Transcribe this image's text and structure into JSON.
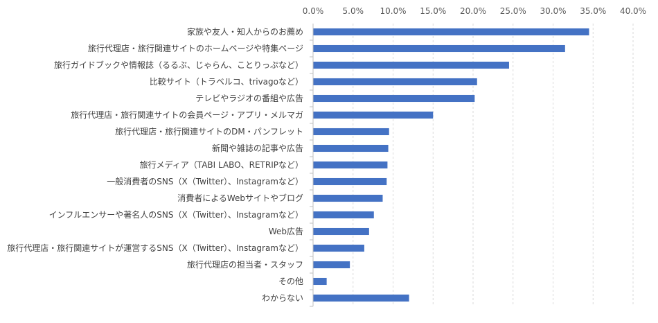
{
  "chart_data": {
    "type": "bar",
    "orientation": "horizontal",
    "x_axis_position": "top",
    "xlim": [
      0,
      40
    ],
    "x_ticks": [
      "0.0%",
      "5.0%",
      "10.0%",
      "15.0%",
      "20.0%",
      "25.0%",
      "30.0%",
      "35.0%",
      "40.0%"
    ],
    "x_tick_values": [
      0,
      5,
      10,
      15,
      20,
      25,
      30,
      35,
      40
    ],
    "categories": [
      "家族や友人・知人からのお薦め",
      "旅行代理店・旅行関連サイトのホームページや特集ページ",
      "旅行ガイドブックや情報誌（るるぶ、じゃらん、ことりっぷなど）",
      "比較サイト（トラベルコ、trivagoなど）",
      "テレビやラジオの番組や広告",
      "旅行代理店・旅行関連サイトの会員ページ・アプリ・メルマガ",
      "旅行代理店・旅行関連サイトのDM・パンフレット",
      "新聞や雑誌の記事や広告",
      "旅行メディア（TABI LABO、RETRIPなど）",
      "一般消費者のSNS（X（Twitter）、Instagramなど）",
      "消費者によるWebサイトやブログ",
      "インフルエンサーや著名人のSNS（X（Twitter）、Instagramなど）",
      "Web広告",
      "旅行代理店・旅行関連サイトが運営するSNS（X（Twitter）、Instagramなど）",
      "旅行代理店の担当者・スタッフ",
      "その他",
      "わからない"
    ],
    "values": [
      34.5,
      31.5,
      24.5,
      20.5,
      20.2,
      15.0,
      9.5,
      9.4,
      9.3,
      9.2,
      8.7,
      7.6,
      7.0,
      6.4,
      4.6,
      1.7,
      12.0
    ],
    "bar_color": "#4472c4",
    "grid": true,
    "legend": "none"
  }
}
